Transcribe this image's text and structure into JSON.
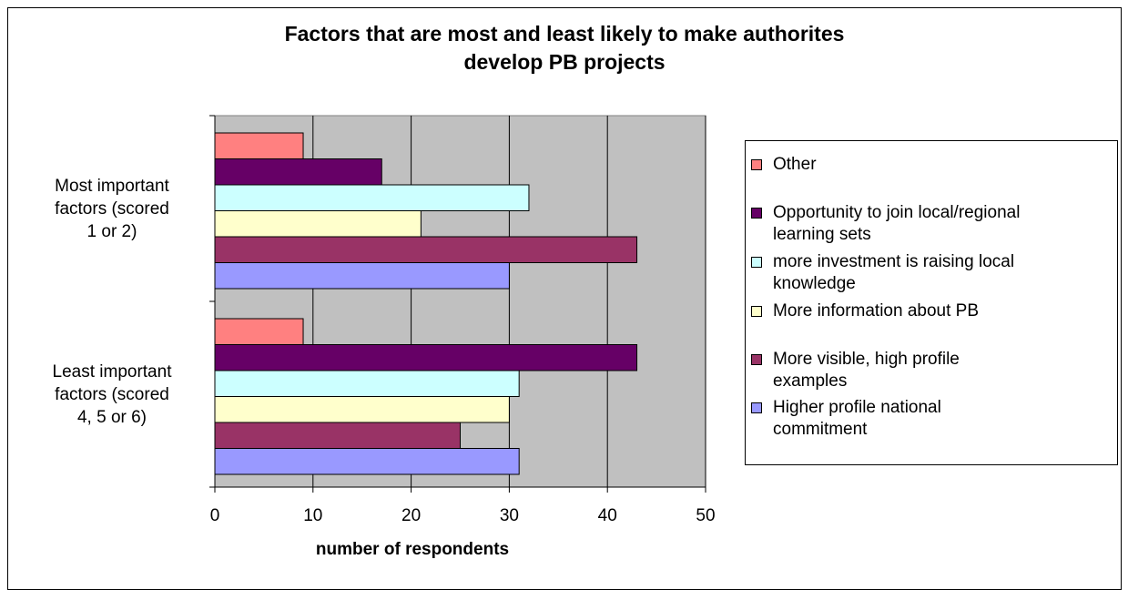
{
  "chart_data": {
    "type": "bar",
    "orientation": "horizontal",
    "title": "Factors that are most and least likely to make authorites develop PB projects",
    "title_lines": [
      "Factors that are most and least likely to make authorites",
      "develop PB projects"
    ],
    "xlabel": "number of respondents",
    "ylabel": "",
    "xlim": [
      0,
      50
    ],
    "x_ticks": [
      "0",
      "10",
      "20",
      "30",
      "40",
      "50"
    ],
    "categories": [
      {
        "label": "Most important factors (scored 1 or 2)",
        "lines": [
          "Most important",
          "factors (scored",
          "1 or 2)"
        ]
      },
      {
        "label": "Least important factors (scored 4, 5 or 6)",
        "lines": [
          "Least important",
          "factors (scored",
          "4, 5 or 6)"
        ]
      }
    ],
    "series": [
      {
        "name": "Other",
        "color": "#FF8080",
        "values": [
          9,
          9
        ]
      },
      {
        "name": "Opportunity to join local/regional learning sets",
        "color": "#660066",
        "values": [
          17,
          43
        ]
      },
      {
        "name": "more investment is raising local knowledge",
        "color": "#CCFFFF",
        "values": [
          32,
          31
        ]
      },
      {
        "name": "More information about PB",
        "color": "#FFFFCC",
        "values": [
          21,
          30
        ]
      },
      {
        "name": "More visible, high profile examples",
        "color": "#993366",
        "values": [
          43,
          25
        ]
      },
      {
        "name": "Higher profile national commitment",
        "color": "#9999FF",
        "values": [
          30,
          31
        ]
      }
    ],
    "legend_entries": [
      {
        "series": 0,
        "lines": [
          "Other"
        ]
      },
      {
        "series": 1,
        "lines": [
          "Opportunity to join local/regional",
          "learning sets"
        ]
      },
      {
        "series": 2,
        "lines": [
          "more investment is raising local",
          "knowledge"
        ]
      },
      {
        "series": 3,
        "lines": [
          "More information about PB"
        ]
      },
      {
        "series": 4,
        "lines": [
          "More visible, high profile",
          "examples"
        ]
      },
      {
        "series": 5,
        "lines": [
          "Higher profile national",
          "commitment"
        ]
      }
    ],
    "grid": true,
    "plot_background": "#C0C0C0",
    "legend_position": "right"
  }
}
